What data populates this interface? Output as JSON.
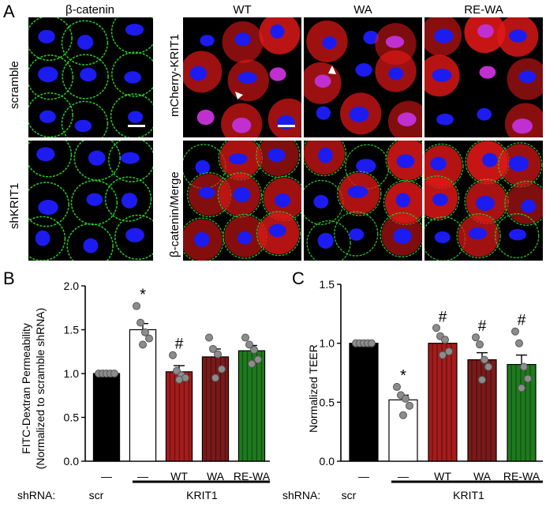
{
  "panelA": {
    "letter": "A",
    "left_col_title": "β-catenin",
    "row_labels_left": [
      "scramble",
      "shKRIT1"
    ],
    "col_titles": [
      "WT",
      "WA",
      "RE-WA"
    ],
    "row_labels_right": [
      "mCherry-KRIT1",
      "β-catenin/Merge"
    ],
    "colors": {
      "nuclei": "#1c1cf0",
      "junctions": "#2bd42b",
      "mcherry": "#e01818",
      "background": "#000000"
    }
  },
  "panelB": {
    "letter": "B",
    "ylabel_line1": "FITC-Dextran Permeability",
    "ylabel_line2": "(Normalized to scramble shRNA)",
    "shrna_label": "shRNA:",
    "group_scr": "scr",
    "group_krit": "KRIT1",
    "dash": "—",
    "sig_marks": [
      "",
      "*",
      "#",
      "",
      ""
    ]
  },
  "panelC": {
    "letter": "C",
    "ylabel": "Normalized TEER",
    "shrna_label": "shRNA:",
    "group_scr": "scr",
    "group_krit": "KRIT1",
    "dash": "—",
    "sig_marks": [
      "",
      "*",
      "#",
      "#",
      "#"
    ]
  },
  "chart_data": [
    {
      "type": "bar",
      "categories": [
        "—",
        "—",
        "WT",
        "WA",
        "RE-WA"
      ],
      "values": [
        1.0,
        1.5,
        1.02,
        1.19,
        1.26
      ],
      "errors": [
        0.0,
        0.07,
        0.07,
        0.09,
        0.06
      ],
      "points": [
        [
          1.0,
          1.0,
          1.0,
          1.0,
          1.0
        ],
        [
          1.77,
          1.58,
          1.47,
          1.4,
          1.33
        ],
        [
          1.21,
          1.03,
          0.98,
          0.95,
          0.93
        ],
        [
          1.41,
          1.28,
          1.22,
          1.05,
          0.95
        ],
        [
          1.41,
          1.33,
          1.27,
          1.16,
          1.11
        ]
      ],
      "colors": [
        "#000000",
        "#ffffff",
        "#a51c1c",
        "#7a1a1a",
        "#1e7a1e"
      ],
      "ylabel": "FITC-Dextran Permeability (Normalized to scramble shRNA)",
      "ylim": [
        0.0,
        2.0
      ],
      "yticks": [
        "0.0",
        "0.5",
        "1.0",
        "1.5",
        "2.0"
      ]
    },
    {
      "type": "bar",
      "categories": [
        "—",
        "—",
        "WT",
        "WA",
        "RE-WA"
      ],
      "values": [
        1.0,
        0.52,
        1.0,
        0.86,
        0.82
      ],
      "errors": [
        0.0,
        0.04,
        0.05,
        0.06,
        0.08
      ],
      "points": [
        [
          1.0,
          1.0,
          1.0,
          1.0,
          1.0
        ],
        [
          0.63,
          0.56,
          0.53,
          0.47,
          0.39
        ],
        [
          1.13,
          1.06,
          1.03,
          0.93,
          0.9
        ],
        [
          1.05,
          0.99,
          0.86,
          0.8,
          0.69
        ],
        [
          1.1,
          1.0,
          0.8,
          0.7,
          0.62
        ]
      ],
      "colors": [
        "#000000",
        "#ffffff",
        "#a51c1c",
        "#7a1a1a",
        "#1e7a1e"
      ],
      "ylabel": "Normalized TEER",
      "ylim": [
        0.0,
        1.5
      ],
      "yticks": [
        "0.0",
        "0.5",
        "1.0",
        "1.5"
      ]
    }
  ]
}
